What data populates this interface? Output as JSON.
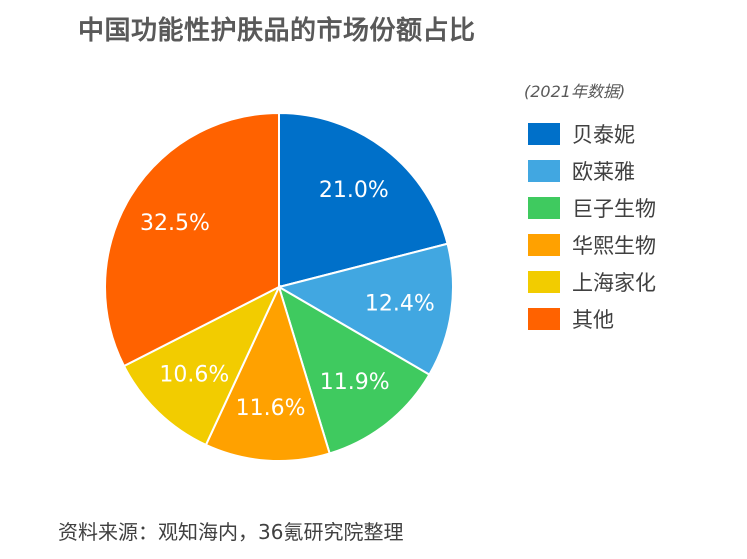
{
  "title": "中国功能性护肤品的市场份额占比",
  "chart_data": {
    "type": "pie",
    "title": "中国功能性护肤品的市场份额占比",
    "subtitle": "(2021年数据)",
    "legend_position": "right",
    "slices": [
      {
        "name": "贝泰妮",
        "value": 21.0,
        "label": "21.0%",
        "color": "#0070C9"
      },
      {
        "name": "欧莱雅",
        "value": 12.4,
        "label": "12.4%",
        "color": "#41A7E1"
      },
      {
        "name": "巨子生物",
        "value": 11.9,
        "label": "11.9%",
        "color": "#3FCA5F"
      },
      {
        "name": "华熙生物",
        "value": 11.6,
        "label": "11.6%",
        "color": "#FFA100"
      },
      {
        "name": "上海家化",
        "value": 10.6,
        "label": "10.6%",
        "color": "#F2CC00"
      },
      {
        "name": "其他",
        "value": 32.5,
        "label": "32.5%",
        "color": "#FF6200"
      }
    ]
  },
  "source": "资料来源：观知海内，36氪研究院整理"
}
